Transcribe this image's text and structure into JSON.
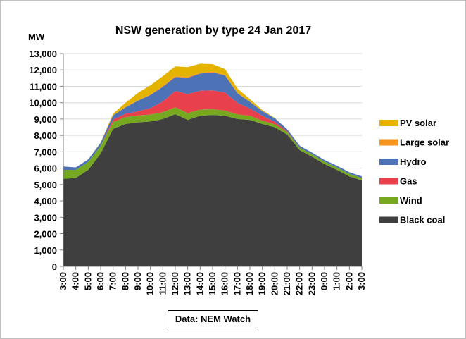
{
  "chart_data": {
    "type": "area",
    "stacked": true,
    "title": "NSW generation by type 24 Jan 2017",
    "ylabel": "MW",
    "ylim": [
      0,
      13000
    ],
    "yticks": [
      "0",
      "1,000",
      "2,000",
      "3,000",
      "4,000",
      "5,000",
      "6,000",
      "7,000",
      "8,000",
      "9,000",
      "10,000",
      "11,000",
      "12,000",
      "13,000"
    ],
    "x": [
      "3:00",
      "4:00",
      "5:00",
      "6:00",
      "7:00",
      "8:00",
      "9:00",
      "10:00",
      "11:00",
      "12:00",
      "13:00",
      "14:00",
      "15:00",
      "16:00",
      "17:00",
      "18:00",
      "19:00",
      "20:00",
      "21:00",
      "22:00",
      "23:00",
      "0:00",
      "1:00",
      "2:00",
      "3:00"
    ],
    "series": [
      {
        "name": "Black coal",
        "color": "#3f3f3f",
        "values": [
          5350,
          5400,
          5900,
          6900,
          8400,
          8700,
          8800,
          8850,
          9000,
          9300,
          8950,
          9200,
          9250,
          9200,
          9000,
          8950,
          8700,
          8500,
          8050,
          7100,
          6700,
          6250,
          5900,
          5500,
          5250
        ]
      },
      {
        "name": "Wind",
        "color": "#76a820",
        "values": [
          550,
          500,
          480,
          450,
          420,
          420,
          420,
          420,
          420,
          420,
          420,
          380,
          350,
          320,
          280,
          250,
          200,
          180,
          160,
          150,
          150,
          150,
          150,
          150,
          150
        ]
      },
      {
        "name": "Gas",
        "color": "#e8414b",
        "values": [
          0,
          0,
          0,
          0,
          150,
          200,
          250,
          400,
          650,
          1000,
          1150,
          1150,
          1150,
          1100,
          700,
          450,
          300,
          150,
          50,
          0,
          0,
          0,
          0,
          0,
          0
        ]
      },
      {
        "name": "Hydro",
        "color": "#4d72b5",
        "values": [
          200,
          150,
          150,
          200,
          250,
          400,
          650,
          800,
          900,
          850,
          1000,
          1050,
          1100,
          1050,
          600,
          400,
          280,
          220,
          120,
          120,
          100,
          100,
          100,
          100,
          100
        ]
      },
      {
        "name": "Large solar",
        "color": "#f7941d",
        "values": [
          0,
          0,
          0,
          0,
          10,
          20,
          30,
          40,
          50,
          50,
          50,
          50,
          50,
          40,
          30,
          20,
          10,
          0,
          0,
          0,
          0,
          0,
          0,
          0,
          0
        ]
      },
      {
        "name": "PV solar",
        "color": "#e3b300",
        "values": [
          0,
          0,
          0,
          20,
          100,
          250,
          450,
          550,
          600,
          600,
          600,
          550,
          450,
          350,
          250,
          150,
          60,
          20,
          0,
          0,
          0,
          0,
          0,
          0,
          0
        ]
      }
    ],
    "grid": true,
    "legend": "right"
  },
  "source_note": "Data: NEM Watch"
}
